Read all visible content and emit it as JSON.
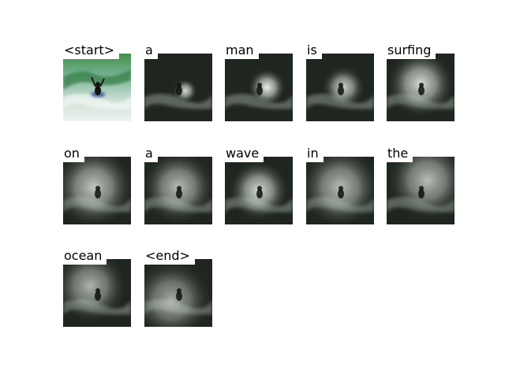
{
  "figure": {
    "panels": [
      {
        "word": "<start>",
        "kind": "photo"
      },
      {
        "word": "a",
        "kind": "attention",
        "focus": [
          0.6,
          0.55
        ],
        "spread": 0.18,
        "strength": 0.9
      },
      {
        "word": "man",
        "kind": "attention",
        "focus": [
          0.62,
          0.5
        ],
        "spread": 0.28,
        "strength": 1.0
      },
      {
        "word": "is",
        "kind": "attention",
        "focus": [
          0.55,
          0.5
        ],
        "spread": 0.32,
        "strength": 0.85
      },
      {
        "word": "surfing",
        "kind": "attention",
        "focus": [
          0.5,
          0.45
        ],
        "spread": 0.5,
        "strength": 0.9
      },
      {
        "word": "on",
        "kind": "attention",
        "focus": [
          0.45,
          0.45
        ],
        "spread": 0.6,
        "strength": 0.8
      },
      {
        "word": "a",
        "kind": "attention",
        "focus": [
          0.5,
          0.45
        ],
        "spread": 0.55,
        "strength": 0.75
      },
      {
        "word": "wave",
        "kind": "attention",
        "focus": [
          0.5,
          0.5
        ],
        "spread": 0.45,
        "strength": 0.9
      },
      {
        "word": "in",
        "kind": "attention",
        "focus": [
          0.5,
          0.45
        ],
        "spread": 0.6,
        "strength": 0.75
      },
      {
        "word": "the",
        "kind": "attention",
        "focus": [
          0.6,
          0.35
        ],
        "spread": 0.6,
        "strength": 0.75
      },
      {
        "word": "ocean",
        "kind": "attention",
        "focus": [
          0.4,
          0.4
        ],
        "spread": 0.55,
        "strength": 0.7
      },
      {
        "word": "<end>",
        "kind": "attention",
        "focus": [
          0.4,
          0.6
        ],
        "spread": 0.6,
        "strength": 0.65
      }
    ]
  }
}
